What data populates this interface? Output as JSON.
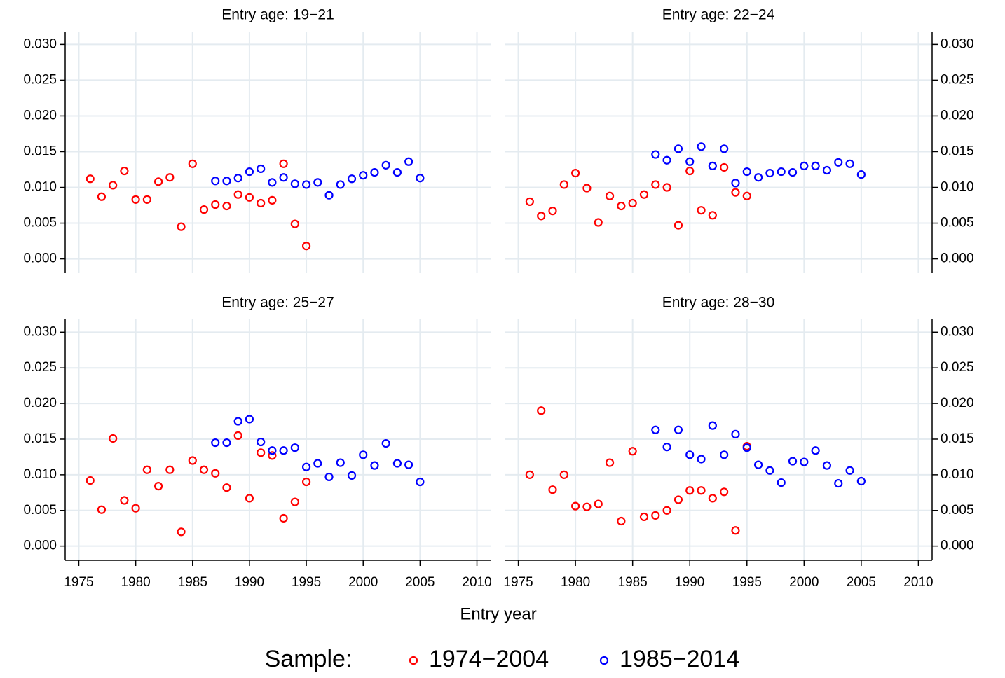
{
  "figure": {
    "xlabel": "Entry year",
    "legend_title": "Sample:"
  },
  "chart_data": [
    {
      "type": "scatter",
      "title": "Entry age: 19−21",
      "yaxis_side": "left",
      "show_xticklabels": false,
      "grid": true,
      "xlim": [
        1973.8,
        2011.2
      ],
      "ylim": [
        -0.002,
        0.0318
      ],
      "xticks": [
        1975,
        1980,
        1985,
        1990,
        1995,
        2000,
        2005,
        2010
      ],
      "yticks": [
        {
          "value": 0,
          "label": "0.000"
        },
        {
          "value": 0.005,
          "label": "0.005"
        },
        {
          "value": 0.01,
          "label": "0.010"
        },
        {
          "value": 0.015,
          "label": "0.015"
        },
        {
          "value": 0.02,
          "label": "0.020"
        },
        {
          "value": 0.025,
          "label": "0.025"
        },
        {
          "value": 0.03,
          "label": "0.030"
        }
      ],
      "series": [
        {
          "name": "1974−2004",
          "color": "#ff0000",
          "x": [
            1976,
            1977,
            1978,
            1979,
            1980,
            1981,
            1982,
            1983,
            1984,
            1985,
            1986,
            1987,
            1988,
            1989,
            1990,
            1991,
            1992,
            1993,
            1994,
            1995
          ],
          "values": [
            0.0112,
            0.0087,
            0.0103,
            0.0123,
            0.0083,
            0.0083,
            0.0108,
            0.0114,
            0.0045,
            0.0133,
            0.0069,
            0.0076,
            0.0074,
            0.009,
            0.0086,
            0.0078,
            0.0082,
            0.0133,
            0.0049,
            0.0018
          ]
        },
        {
          "name": "1985−2014",
          "color": "#0000ff",
          "x": [
            1987,
            1988,
            1989,
            1990,
            1991,
            1992,
            1993,
            1994,
            1995,
            1996,
            1997,
            1998,
            1999,
            2000,
            2001,
            2002,
            2003,
            2004,
            2005
          ],
          "values": [
            0.0109,
            0.0109,
            0.0113,
            0.0122,
            0.0126,
            0.0107,
            0.0114,
            0.0105,
            0.0104,
            0.0107,
            0.0089,
            0.0104,
            0.0112,
            0.0117,
            0.0121,
            0.0131,
            0.0121,
            0.0136,
            0.0113
          ]
        }
      ]
    },
    {
      "type": "scatter",
      "title": "Entry age: 22−24",
      "yaxis_side": "right",
      "show_xticklabels": false,
      "grid": true,
      "xlim": [
        1973.8,
        2011.2
      ],
      "ylim": [
        -0.002,
        0.0318
      ],
      "xticks": [
        1975,
        1980,
        1985,
        1990,
        1995,
        2000,
        2005,
        2010
      ],
      "yticks": [
        {
          "value": 0,
          "label": "0.000"
        },
        {
          "value": 0.005,
          "label": "0.005"
        },
        {
          "value": 0.01,
          "label": "0.010"
        },
        {
          "value": 0.015,
          "label": "0.015"
        },
        {
          "value": 0.02,
          "label": "0.020"
        },
        {
          "value": 0.025,
          "label": "0.025"
        },
        {
          "value": 0.03,
          "label": "0.030"
        }
      ],
      "series": [
        {
          "name": "1974−2004",
          "color": "#ff0000",
          "x": [
            1976,
            1977,
            1978,
            1979,
            1980,
            1981,
            1982,
            1983,
            1984,
            1985,
            1986,
            1987,
            1988,
            1989,
            1990,
            1991,
            1992,
            1993,
            1994,
            1995
          ],
          "values": [
            0.008,
            0.006,
            0.0067,
            0.0104,
            0.012,
            0.0099,
            0.0051,
            0.0088,
            0.0074,
            0.0078,
            0.009,
            0.0104,
            0.01,
            0.0047,
            0.0123,
            0.0068,
            0.0061,
            0.0128,
            0.0093,
            0.0088
          ]
        },
        {
          "name": "1985−2014",
          "color": "#0000ff",
          "x": [
            1987,
            1988,
            1989,
            1990,
            1991,
            1992,
            1993,
            1994,
            1995,
            1996,
            1997,
            1998,
            1999,
            2000,
            2001,
            2002,
            2003,
            2004,
            2005
          ],
          "values": [
            0.0146,
            0.0138,
            0.0154,
            0.0136,
            0.0157,
            0.013,
            0.0154,
            0.0106,
            0.0122,
            0.0114,
            0.012,
            0.0122,
            0.0121,
            0.013,
            0.013,
            0.0124,
            0.0135,
            0.0133,
            0.0118
          ]
        }
      ]
    },
    {
      "type": "scatter",
      "title": "Entry age: 25−27",
      "yaxis_side": "left",
      "show_xticklabels": true,
      "grid": true,
      "xlim": [
        1973.8,
        2011.2
      ],
      "ylim": [
        -0.002,
        0.0318
      ],
      "xticks": [
        1975,
        1980,
        1985,
        1990,
        1995,
        2000,
        2005,
        2010
      ],
      "yticks": [
        {
          "value": 0,
          "label": "0.000"
        },
        {
          "value": 0.005,
          "label": "0.005"
        },
        {
          "value": 0.01,
          "label": "0.010"
        },
        {
          "value": 0.015,
          "label": "0.015"
        },
        {
          "value": 0.02,
          "label": "0.020"
        },
        {
          "value": 0.025,
          "label": "0.025"
        },
        {
          "value": 0.03,
          "label": "0.030"
        }
      ],
      "series": [
        {
          "name": "1974−2004",
          "color": "#ff0000",
          "x": [
            1976,
            1977,
            1978,
            1979,
            1980,
            1981,
            1982,
            1983,
            1984,
            1985,
            1986,
            1987,
            1988,
            1989,
            1990,
            1991,
            1992,
            1993,
            1994,
            1995
          ],
          "values": [
            0.0092,
            0.0051,
            0.0151,
            0.0064,
            0.0053,
            0.0107,
            0.0084,
            0.0107,
            0.002,
            0.012,
            0.0107,
            0.0102,
            0.0082,
            0.0155,
            0.0067,
            0.0131,
            0.0127,
            0.0039,
            0.0062,
            0.009
          ]
        },
        {
          "name": "1985−2014",
          "color": "#0000ff",
          "x": [
            1987,
            1988,
            1989,
            1990,
            1991,
            1992,
            1993,
            1994,
            1995,
            1996,
            1997,
            1998,
            1999,
            2000,
            2001,
            2002,
            2003,
            2004,
            2005
          ],
          "values": [
            0.0145,
            0.0145,
            0.0175,
            0.0178,
            0.0146,
            0.0134,
            0.0134,
            0.0138,
            0.0111,
            0.0116,
            0.0097,
            0.0117,
            0.0099,
            0.0128,
            0.0113,
            0.0144,
            0.0116,
            0.0114,
            0.009
          ]
        }
      ]
    },
    {
      "type": "scatter",
      "title": "Entry age: 28−30",
      "yaxis_side": "right",
      "show_xticklabels": true,
      "grid": true,
      "xlim": [
        1973.8,
        2011.2
      ],
      "ylim": [
        -0.002,
        0.0318
      ],
      "xticks": [
        1975,
        1980,
        1985,
        1990,
        1995,
        2000,
        2005,
        2010
      ],
      "yticks": [
        {
          "value": 0,
          "label": "0.000"
        },
        {
          "value": 0.005,
          "label": "0.005"
        },
        {
          "value": 0.01,
          "label": "0.010"
        },
        {
          "value": 0.015,
          "label": "0.015"
        },
        {
          "value": 0.02,
          "label": "0.020"
        },
        {
          "value": 0.025,
          "label": "0.025"
        },
        {
          "value": 0.03,
          "label": "0.030"
        }
      ],
      "series": [
        {
          "name": "1974−2004",
          "color": "#ff0000",
          "x": [
            1976,
            1977,
            1978,
            1979,
            1980,
            1981,
            1982,
            1983,
            1984,
            1985,
            1986,
            1987,
            1988,
            1989,
            1990,
            1991,
            1992,
            1993,
            1994,
            1995
          ],
          "values": [
            0.01,
            0.019,
            0.0079,
            0.01,
            0.0056,
            0.0055,
            0.0059,
            0.0117,
            0.0035,
            0.0133,
            0.0041,
            0.0043,
            0.005,
            0.0065,
            0.0078,
            0.0078,
            0.0067,
            0.0076,
            0.0022,
            0.014
          ]
        },
        {
          "name": "1985−2014",
          "color": "#0000ff",
          "x": [
            1987,
            1988,
            1989,
            1990,
            1991,
            1992,
            1993,
            1994,
            1995,
            1996,
            1997,
            1998,
            1999,
            2000,
            2001,
            2002,
            2003,
            2004,
            2005
          ],
          "values": [
            0.0163,
            0.0139,
            0.0163,
            0.0128,
            0.0122,
            0.0169,
            0.0128,
            0.0157,
            0.0138,
            0.0114,
            0.0106,
            0.0089,
            0.0119,
            0.0118,
            0.0134,
            0.0113,
            0.0088,
            0.0106,
            0.0091
          ]
        }
      ]
    }
  ]
}
